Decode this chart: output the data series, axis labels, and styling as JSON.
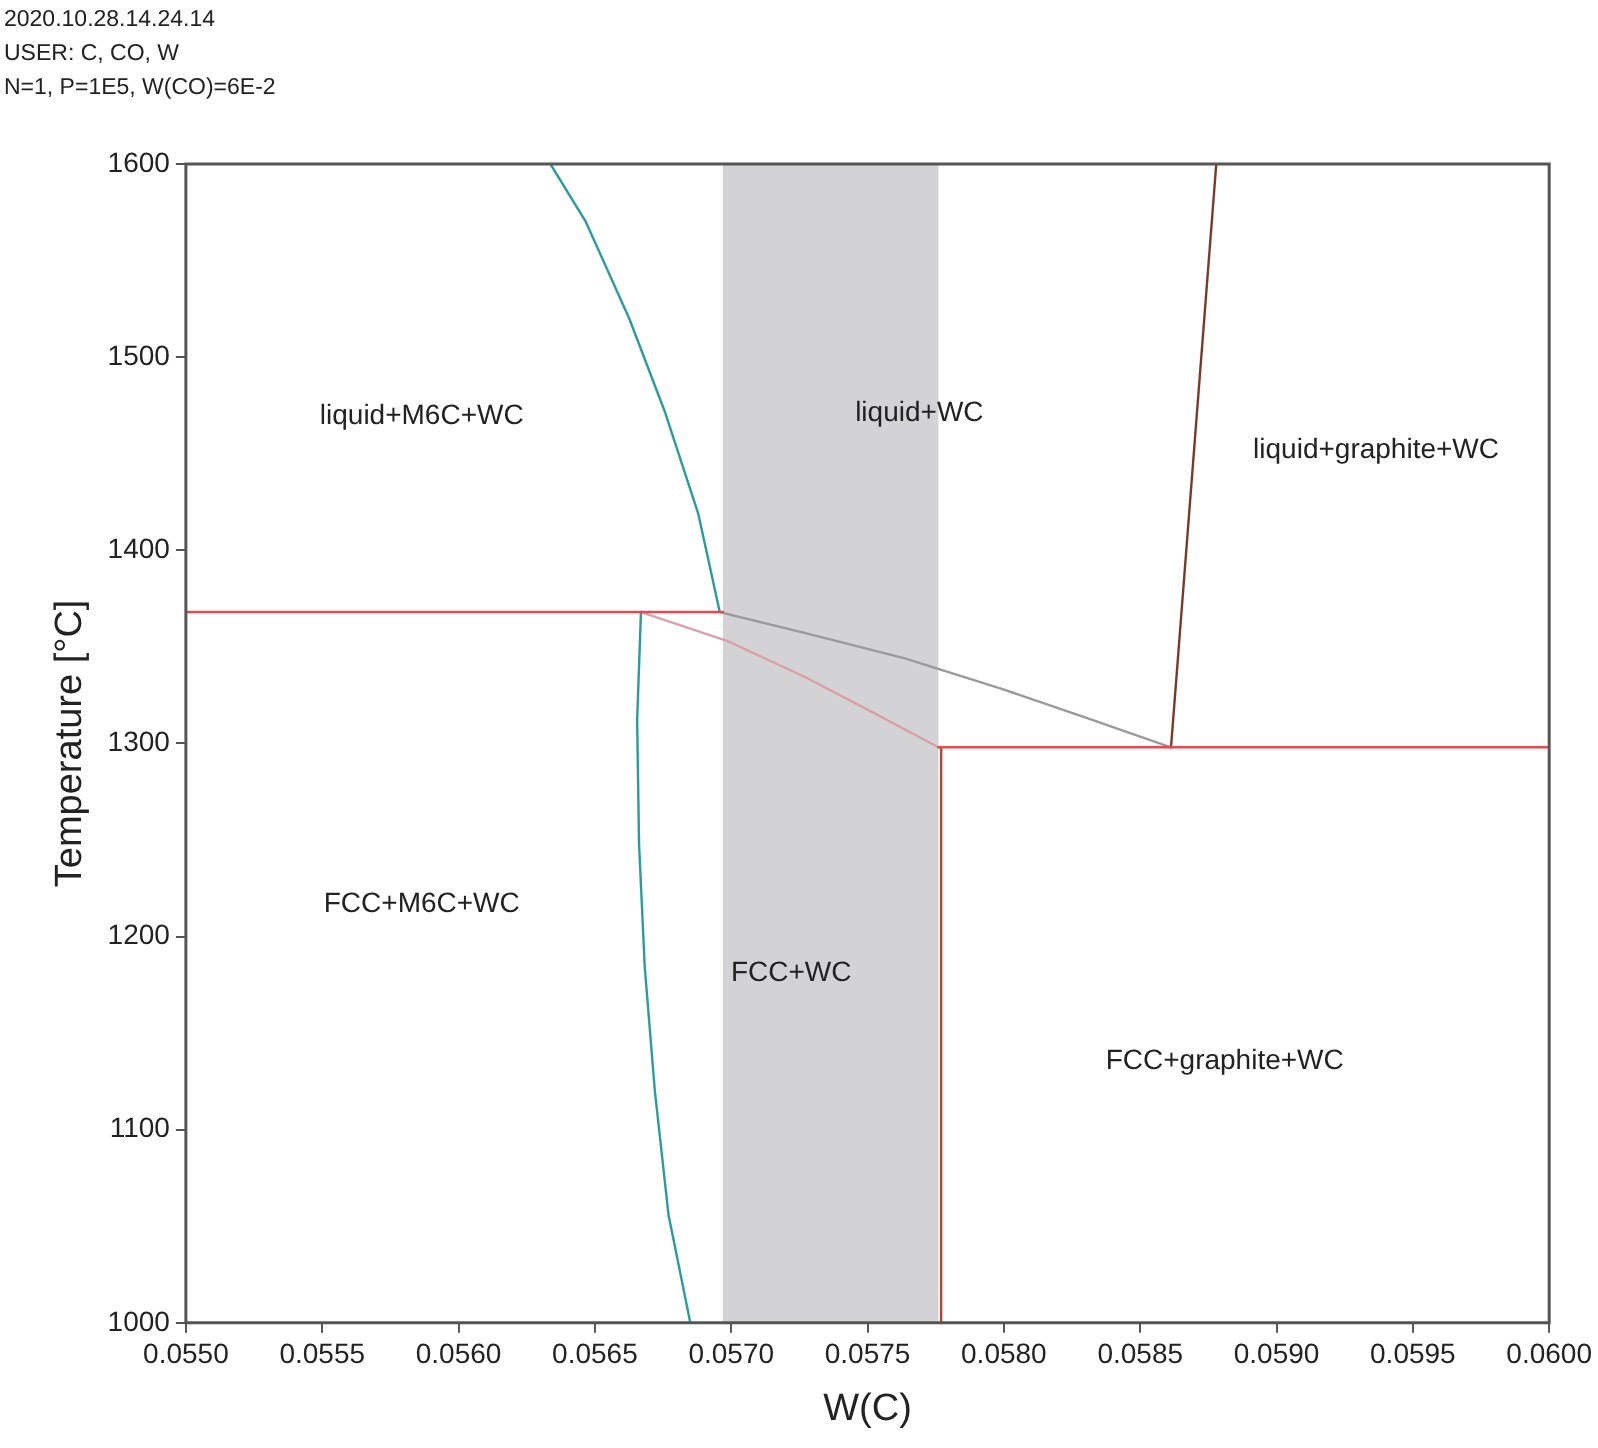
{
  "chart_data": {
    "type": "line",
    "xlabel": "W(C)",
    "ylabel": "Temperature [°C]",
    "xlim": [
      0.055,
      0.06
    ],
    "ylim": [
      1000,
      1600
    ],
    "xticks": [
      {
        "value": 0.055,
        "label": "0.0550"
      },
      {
        "value": 0.0555,
        "label": "0.0555"
      },
      {
        "value": 0.056,
        "label": "0.0560"
      },
      {
        "value": 0.0565,
        "label": "0.0565"
      },
      {
        "value": 0.057,
        "label": "0.0570"
      },
      {
        "value": 0.0575,
        "label": "0.0575"
      },
      {
        "value": 0.058,
        "label": "0.0580"
      },
      {
        "value": 0.0585,
        "label": "0.0585"
      },
      {
        "value": 0.059,
        "label": "0.0590"
      },
      {
        "value": 0.0595,
        "label": "0.0595"
      },
      {
        "value": 0.06,
        "label": "0.0600"
      }
    ],
    "yticks": [
      1000,
      1100,
      1200,
      1300,
      1400,
      1500,
      1600
    ],
    "grid": false,
    "legend": false,
    "marker": "none",
    "line_style": "solid",
    "bands": [
      {
        "axis": "x",
        "from": 0.05697,
        "to": 0.05776,
        "color": "#d3d2d4"
      }
    ],
    "series": [
      {
        "color": "#e8484f",
        "x": [
          0.055,
          0.05697
        ],
        "values": [
          1368,
          1368
        ]
      },
      {
        "color": "#e8484f",
        "x": [
          0.05776,
          0.06
        ],
        "values": [
          1298,
          1298
        ]
      },
      {
        "color": "#b0483a",
        "x": [
          0.05777,
          0.05777
        ],
        "values": [
          1000,
          1298
        ]
      },
      {
        "color": "#2a9d9a",
        "x": [
          0.056337,
          0.056467,
          0.056626,
          0.056756,
          0.056879,
          0.056958
        ],
        "values": [
          1600,
          1570,
          1520,
          1472,
          1419,
          1368
        ]
      },
      {
        "color": "#2a9d9a",
        "x": [
          0.056669,
          0.056655,
          0.056662,
          0.056683,
          0.05672,
          0.05677,
          0.05685
        ],
        "values": [
          1368,
          1312,
          1248,
          1184,
          1120,
          1056,
          1000
        ]
      },
      {
        "color": "#d9a0aa",
        "x": [
          0.056669,
          0.056987,
          0.057276,
          0.057493,
          0.05776
        ],
        "values": [
          1368,
          1353,
          1334,
          1318,
          1298
        ]
      },
      {
        "color": "#9a9a9a",
        "x": [
          0.056958,
          0.057276,
          0.057637,
          0.057998,
          0.058287,
          0.058613
        ],
        "values": [
          1368,
          1357,
          1344,
          1328,
          1314,
          1298
        ]
      },
      {
        "color": "#7a3a2a",
        "x": [
          0.058613,
          0.058779
        ],
        "values": [
          1298,
          1600
        ]
      }
    ],
    "annotations": [
      "2020.10.28.14.24.14",
      "USER: C, CO, W",
      "N=1, P=1E5, W(CO)=6E-2",
      "liquid+M6C+WC",
      "liquid+WC",
      "liquid+graphite+WC",
      "FCC+M6C+WC",
      "FCC+WC",
      "FCC+graphite+WC"
    ]
  }
}
